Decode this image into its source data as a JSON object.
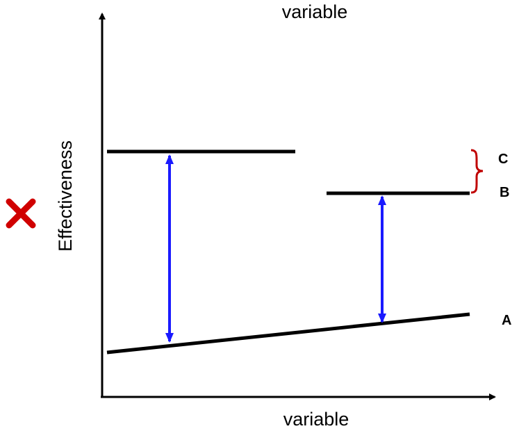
{
  "diagram": {
    "top_label": "variable",
    "x_axis_label": "variable",
    "y_axis_label": "Effectiveness",
    "marker_icon": "cross-mark-icon",
    "labels": {
      "a": "A",
      "b": "B",
      "c": "C"
    },
    "colors": {
      "axis": "#000000",
      "lines": "#000000",
      "arrows": "#1a1aff",
      "brace": "#c00000",
      "cross": "#d00000"
    }
  }
}
